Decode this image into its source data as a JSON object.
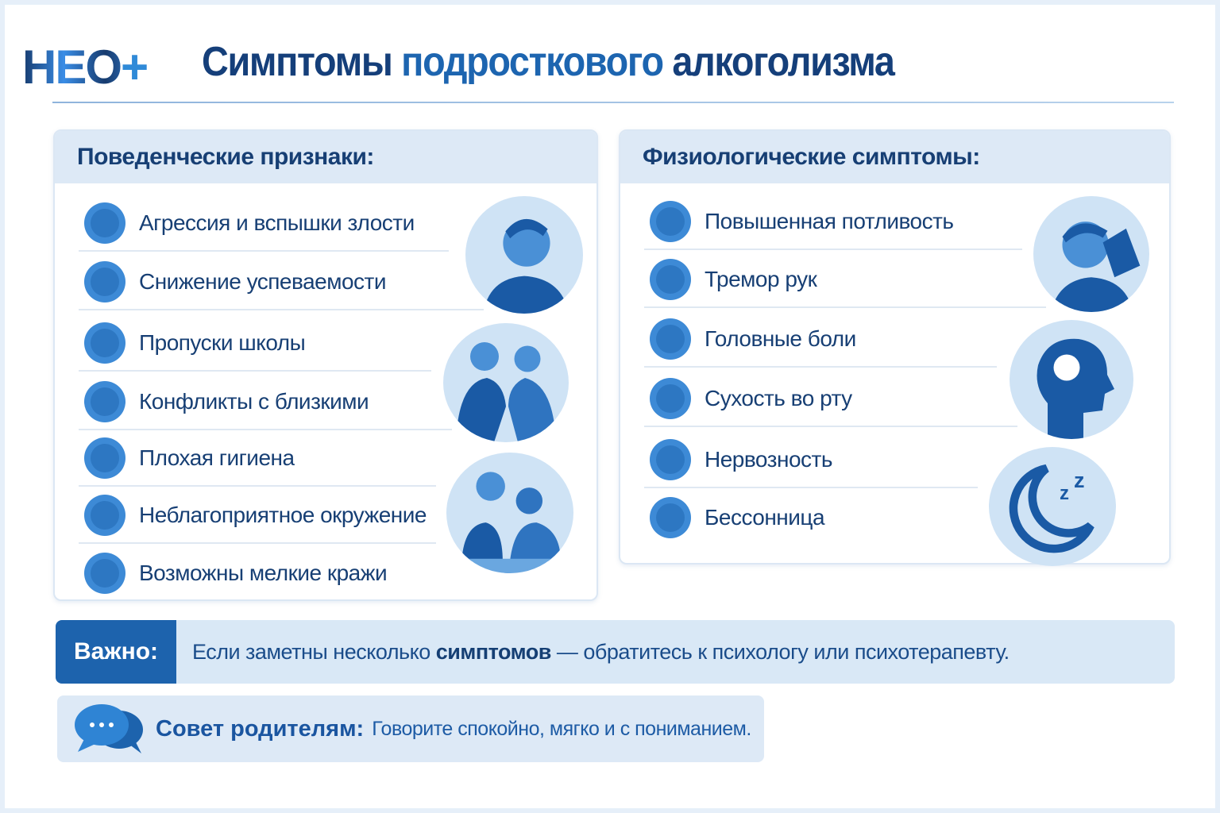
{
  "logo": {
    "text": "НЕО",
    "plus": "+"
  },
  "title": {
    "part1": "Симптомы",
    "part2": "подросткового",
    "part3": "алкоголизма"
  },
  "behavioral": {
    "heading": "Поведенческие признаки:",
    "items": [
      {
        "label": "Агрессия и вспышки злости",
        "icon": "angry-face-icon"
      },
      {
        "label": "Снижение успеваемости",
        "icon": "chart-down-icon"
      },
      {
        "label": "Пропуски школы",
        "icon": "school-icon"
      },
      {
        "label": "Конфликты с близкими",
        "icon": "shirt-icon"
      },
      {
        "label": "Плохая гигиена",
        "icon": "hygiene-icon"
      },
      {
        "label": "Неблагоприятное окружение",
        "icon": "group-icon"
      },
      {
        "label": "Возможны мелкие кражи",
        "icon": "wallet-icon"
      }
    ]
  },
  "physiological": {
    "heading": "Физиологические симптомы:",
    "items": [
      {
        "label": "Повышенная потливость",
        "icon": "sweat-drops-icon"
      },
      {
        "label": "Тремор рук",
        "icon": "shaking-hand-icon"
      },
      {
        "label": "Головные боли",
        "icon": "head-pain-icon"
      },
      {
        "label": "Сухость во рту",
        "icon": "lips-icon"
      },
      {
        "label": "Нервозность",
        "icon": "nervous-face-icon"
      },
      {
        "label": "Бессонница",
        "icon": "sleepy-face-icon"
      }
    ]
  },
  "important": {
    "tag": "Важно:",
    "text_before": "Если заметны несколько ",
    "text_bold": "симптомов",
    "text_after": " — обратитесь к психологу или психотерапевту."
  },
  "tip": {
    "heading": "Совет родителям:",
    "text": "Говорите спокойно, мягко и с пониманием."
  },
  "colors": {
    "navy": "#153f7a",
    "accent": "#1d63ad",
    "light": "#dde9f6"
  }
}
